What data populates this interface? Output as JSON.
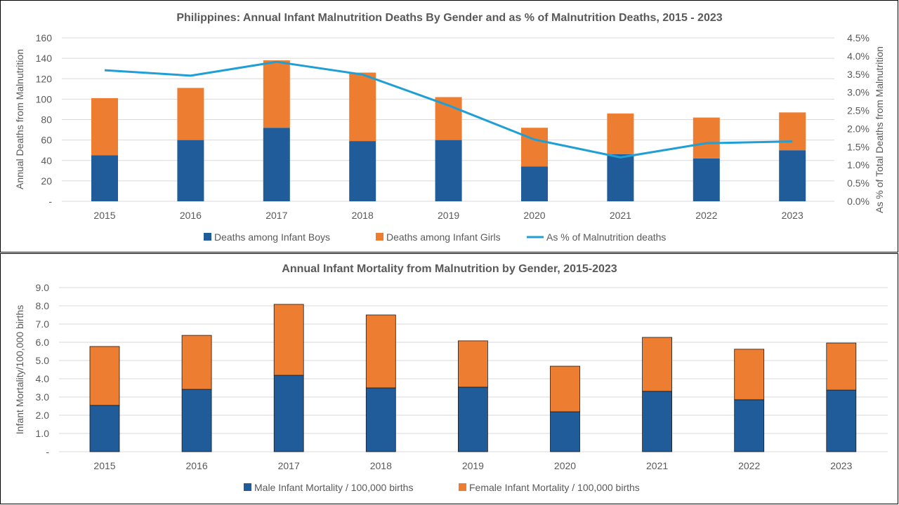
{
  "colors": {
    "boys": "#1F5C99",
    "girls": "#ED7D31",
    "line": "#1F9FD6",
    "grid": "#D9D9D9",
    "text": "#595959"
  },
  "chart_data": [
    {
      "type": "bar",
      "stacked": true,
      "title": "Philippines: Annual Infant Malnutrition Deaths By Gender and as % of Malnutrition Deaths, 2015 - 2023",
      "ylabel": "Annual Deaths from Malnutrition",
      "y2label": "As % of Total Deaths from Malnutrition",
      "ylim": [
        0,
        160
      ],
      "y_ticks": [
        "-",
        "20",
        "40",
        "60",
        "80",
        "100",
        "120",
        "140",
        "160"
      ],
      "y2lim": [
        0,
        4.5
      ],
      "y2_ticks": [
        "0.0%",
        "0.5%",
        "1.0%",
        "1.5%",
        "2.0%",
        "2.5%",
        "3.0%",
        "3.5%",
        "4.0%",
        "4.5%"
      ],
      "categories": [
        "2015",
        "2016",
        "2017",
        "2018",
        "2019",
        "2020",
        "2021",
        "2022",
        "2023"
      ],
      "series": [
        {
          "name": "Deaths among Infant Boys",
          "type": "bar",
          "values": [
            45,
            60,
            72,
            59,
            60,
            34,
            46,
            42,
            50
          ]
        },
        {
          "name": "Deaths among Infant Girls",
          "type": "bar",
          "values": [
            56,
            51,
            66,
            67,
            42,
            38,
            40,
            40,
            37
          ]
        },
        {
          "name": "As % of Malnutrition deaths",
          "type": "line",
          "axis": "right",
          "values": [
            3.61,
            3.46,
            3.84,
            3.49,
            2.64,
            1.7,
            1.21,
            1.6,
            1.65
          ]
        }
      ],
      "grid": true,
      "legend": "bottom"
    },
    {
      "type": "bar",
      "stacked": true,
      "title": "Annual Infant Mortality from Malnutrition by Gender, 2015-2023",
      "ylabel": "Infant Mortality/100,000 births",
      "ylim": [
        0,
        9
      ],
      "y_ticks": [
        "-",
        "1.0",
        "2.0",
        "3.0",
        "4.0",
        "5.0",
        "6.0",
        "7.0",
        "8.0",
        "9.0"
      ],
      "categories": [
        "2015",
        "2016",
        "2017",
        "2018",
        "2019",
        "2020",
        "2021",
        "2022",
        "2023"
      ],
      "series": [
        {
          "name": "Male Infant Mortality / 100,000 births",
          "type": "bar",
          "values": [
            2.54,
            3.42,
            4.19,
            3.5,
            3.54,
            2.19,
            3.31,
            2.85,
            3.38
          ]
        },
        {
          "name": "Female Infant Mortality / 100,000 births",
          "type": "bar",
          "values": [
            3.23,
            2.96,
            3.89,
            4.0,
            2.54,
            2.5,
            2.96,
            2.77,
            2.58
          ]
        }
      ],
      "grid": true,
      "legend": "bottom"
    }
  ]
}
